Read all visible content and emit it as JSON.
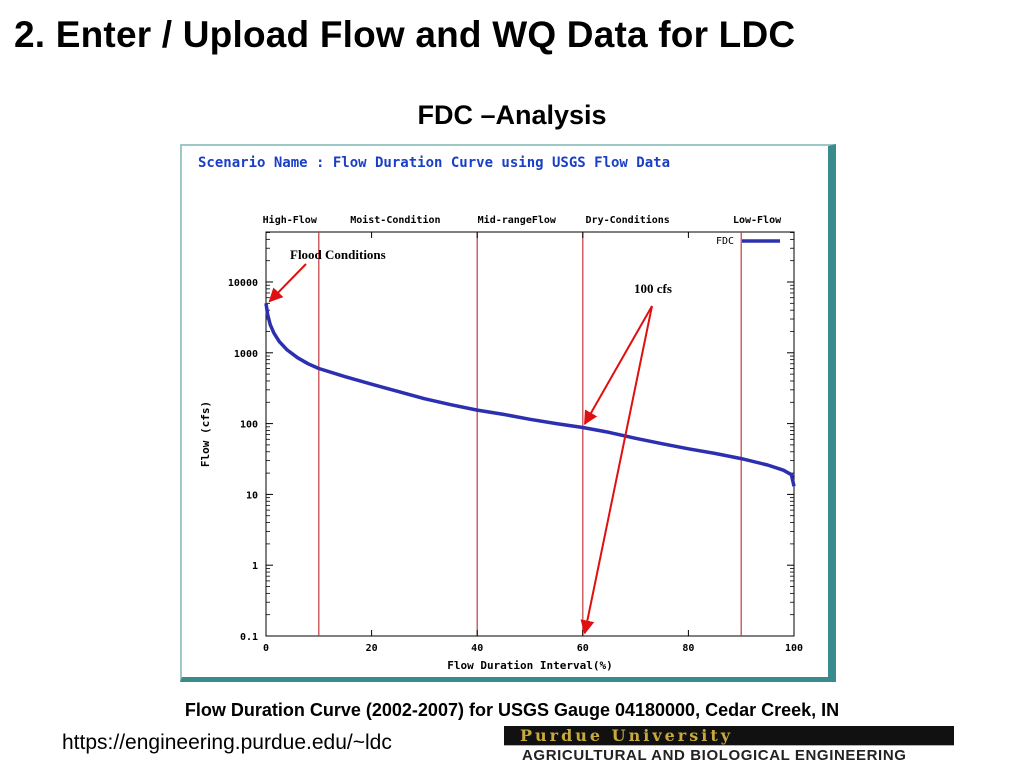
{
  "slide": {
    "title": "2. Enter / Upload Flow and WQ Data for LDC",
    "subtitle": "FDC –Analysis",
    "caption": "Flow Duration Curve (2002-2007) for USGS Gauge 04180000, Cedar Creek, IN",
    "url": "https://engineering.purdue.edu/~ldc",
    "logo": {
      "line1": "Purdue University",
      "line2": "AGRICULTURAL AND BIOLOGICAL ENGINEERING"
    }
  },
  "chart_data": {
    "type": "line",
    "title": "Scenario Name : Flow Duration Curve using USGS Flow Data",
    "xlabel": "Flow Duration Interval(%)",
    "ylabel": "Flow (cfs)",
    "xlim": [
      0,
      100
    ],
    "ylim": [
      0.1,
      50000
    ],
    "yscale": "log",
    "x_ticks": [
      0,
      20,
      40,
      60,
      80,
      100
    ],
    "x_tick_labels": [
      "0",
      "20",
      "40",
      "60",
      "80",
      "100"
    ],
    "y_ticks": [
      0.1,
      1,
      10,
      100,
      1000,
      10000
    ],
    "y_tick_labels": [
      "0.1",
      "1",
      "10",
      "100",
      "1000",
      "10000"
    ],
    "grid": false,
    "legend": {
      "position": "top-right",
      "entries": [
        "FDC"
      ]
    },
    "colors": {
      "series": "#2b2fb0",
      "zone_lines": "#c0393b",
      "annotation": "#e01010",
      "title": "#1a3fc4"
    },
    "series": [
      {
        "name": "FDC",
        "x": [
          0,
          0.3,
          0.8,
          1.5,
          2.5,
          4,
          6,
          8,
          10,
          15,
          20,
          25,
          30,
          35,
          40,
          45,
          50,
          55,
          60,
          65,
          70,
          75,
          80,
          85,
          90,
          95,
          98,
          99.5,
          100
        ],
        "y": [
          5000,
          3500,
          2500,
          1900,
          1450,
          1100,
          850,
          700,
          600,
          460,
          360,
          285,
          225,
          185,
          155,
          135,
          115,
          100,
          88,
          75,
          62,
          52,
          44,
          38,
          32,
          26,
          22,
          19,
          13
        ]
      }
    ],
    "zones": {
      "labels": [
        "High-Flow",
        "Moist-Condition",
        "Mid-rangeFlow",
        "Dry-Conditions",
        "Low-Flow"
      ],
      "label_x": [
        4.5,
        24.5,
        47.5,
        68.5,
        93
      ],
      "boundaries": [
        10,
        40,
        60,
        90
      ]
    },
    "annotations": [
      {
        "text": "Flood Conditions",
        "arrow_to": [
          0.3,
          5000
        ]
      },
      {
        "text": "100 cfs",
        "arrow_to": [
          [
            60,
            90
          ],
          [
            60,
            0.1
          ]
        ]
      }
    ]
  }
}
